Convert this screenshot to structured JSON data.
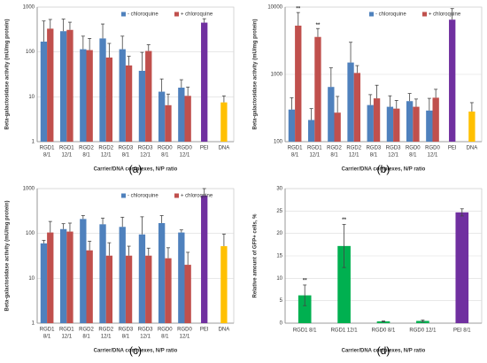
{
  "chart_data": [
    {
      "type": "bar",
      "panel": "(a)",
      "log_scale": true,
      "grid": true,
      "y_label": "Beta-galactosidase activity (mU/mg protein)",
      "x_label": "Carrier/DNA complexes, N/P ratio",
      "categories": [
        [
          "RGD1",
          "8/1"
        ],
        [
          "RGD1",
          "12/1"
        ],
        [
          "RGD2",
          "8/1"
        ],
        [
          "RGD2",
          "12/1"
        ],
        [
          "RGD3",
          "8/1"
        ],
        [
          "RGD3",
          "12/1"
        ],
        [
          "RGD0",
          "8/1"
        ],
        [
          "RGD0",
          "12/1"
        ]
      ],
      "series": [
        {
          "name": "- chloroquine",
          "color": "#4f81bd",
          "values": [
            170,
            290,
            115,
            200,
            115,
            38,
            13,
            16
          ],
          "errors": [
            320,
            250,
            110,
            220,
            110,
            60,
            12,
            8
          ]
        },
        {
          "name": "+ chloroquine",
          "color": "#c0504d",
          "values": [
            330,
            310,
            110,
            75,
            50,
            105,
            6.5,
            10.5
          ],
          "errors": [
            200,
            150,
            90,
            80,
            30,
            40,
            5,
            6
          ]
        }
      ],
      "controls": {
        "categories": [
          "PEI",
          "DNA"
        ],
        "values": [
          450,
          7.5
        ],
        "errors": [
          100,
          3
        ],
        "colors": [
          "#7030a0",
          "#ffc000"
        ]
      },
      "ylim": [
        1,
        1000
      ],
      "yticks": [
        1,
        10,
        100,
        1000
      ],
      "annotations": []
    },
    {
      "type": "bar",
      "panel": "(b)",
      "log_scale": true,
      "grid": true,
      "y_label": "Beta-galactosidase activity (mU/mg protein)",
      "x_label": "Carrier/DNA complexes, N/P ratio",
      "categories": [
        [
          "RGD1",
          "8/1"
        ],
        [
          "RGD1",
          "12/1"
        ],
        [
          "RGD2",
          "8/1"
        ],
        [
          "RGD2",
          "12/1"
        ],
        [
          "RGD3",
          "8/1"
        ],
        [
          "RGD3",
          "12/1"
        ],
        [
          "RGD0",
          "8/1"
        ],
        [
          "RGD0",
          "12/1"
        ]
      ],
      "series": [
        {
          "name": "- chloroquine",
          "color": "#4f81bd",
          "values": [
            300,
            210,
            650,
            1500,
            350,
            330,
            400,
            290
          ],
          "errors": [
            150,
            100,
            600,
            1500,
            150,
            150,
            120,
            150
          ]
        },
        {
          "name": "+ chloroquine",
          "color": "#c0504d",
          "values": [
            5300,
            3600,
            270,
            1050,
            440,
            310,
            330,
            450
          ],
          "errors": [
            3000,
            1200,
            200,
            300,
            250,
            100,
            100,
            150
          ]
        }
      ],
      "controls": {
        "categories": [
          "PEI",
          "DNA"
        ],
        "values": [
          6500,
          280
        ],
        "errors": [
          3000,
          100
        ],
        "colors": [
          "#7030a0",
          "#ffc000"
        ]
      },
      "ylim": [
        100,
        10000
      ],
      "yticks": [
        100,
        1000,
        10000
      ],
      "annotations": [
        {
          "text": "**",
          "category": 0,
          "series": 1
        },
        {
          "text": "**",
          "category": 1,
          "series": 1
        }
      ]
    },
    {
      "type": "bar",
      "panel": "(c)",
      "log_scale": true,
      "grid": true,
      "y_label": "Beta-galactosidase activity (mU/mg protein)",
      "x_label": "Carrier/DNA complexes, N/P ratio",
      "categories": [
        [
          "RGD1",
          "8/1"
        ],
        [
          "RGD1",
          "12/1"
        ],
        [
          "RGD2",
          "8/1"
        ],
        [
          "RGD2",
          "12/1"
        ],
        [
          "RGD3",
          "8/1"
        ],
        [
          "RGD3",
          "12/1"
        ],
        [
          "RGD0",
          "8/1"
        ],
        [
          "RGD0",
          "12/1"
        ]
      ],
      "series": [
        {
          "name": "- chloroquine",
          "color": "#4f81bd",
          "values": [
            60,
            125,
            210,
            160,
            140,
            95,
            170,
            105
          ],
          "errors": [
            10,
            40,
            40,
            60,
            90,
            140,
            80,
            15
          ]
        },
        {
          "name": "+ chloroquine",
          "color": "#c0504d",
          "values": [
            105,
            110,
            42,
            32,
            32,
            32,
            28,
            20
          ],
          "errors": [
            80,
            60,
            25,
            30,
            20,
            15,
            20,
            18
          ]
        }
      ],
      "controls": {
        "categories": [
          "PEI",
          "DNA"
        ],
        "values": [
          700,
          52
        ],
        "errors": [
          300,
          45
        ],
        "colors": [
          "#7030a0",
          "#ffc000"
        ]
      },
      "ylim": [
        1,
        1000
      ],
      "yticks": [
        1,
        10,
        100,
        1000
      ],
      "annotations": []
    },
    {
      "type": "simplebar",
      "panel": "(d)",
      "log_scale": false,
      "grid": true,
      "y_label": "Relative amount of GFP+ cells, %",
      "x_label": "Carrier/DNA complexes, N/P ratio",
      "categories": [
        "RGD1 8/1",
        "RGD1 12/1",
        "RGD0 8/1",
        "RGD0 12/1",
        "PEI 8/1"
      ],
      "values": [
        6.2,
        17.2,
        0.4,
        0.5,
        24.7
      ],
      "errors": [
        2.3,
        4.8,
        0.1,
        0.2,
        0.8
      ],
      "colors": [
        "#00b050",
        "#00b050",
        "#00b050",
        "#00b050",
        "#7030a0"
      ],
      "ylim": [
        0,
        30
      ],
      "yticks": [
        0,
        5,
        10,
        15,
        20,
        25,
        30
      ],
      "annotations": [
        {
          "text": "**",
          "category": 0
        },
        {
          "text": "**",
          "category": 1
        }
      ]
    }
  ]
}
